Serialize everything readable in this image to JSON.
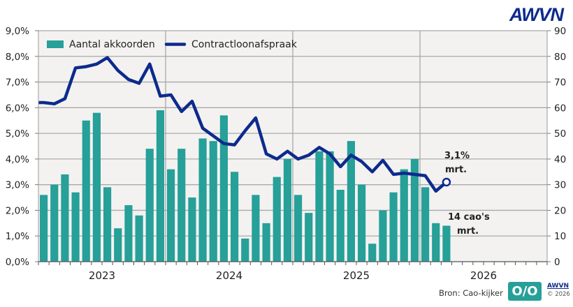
{
  "logo": "AWVN",
  "source": "Bron: Cao-kijker",
  "footer_logo": {
    "mark": "O/O",
    "brand": "AWVN",
    "copyright": "© 2026"
  },
  "colors": {
    "bar": "#26a098",
    "line": "#0d2b8c",
    "plot_bg": "#f3f2f1",
    "grid": "#a9a9a9"
  },
  "chart_data": {
    "type": "bar+line",
    "legend": [
      "Aantal akkoorden",
      "Contractloonafspraak"
    ],
    "legend_position": "top-left",
    "years": [
      "2023",
      "2024",
      "2025",
      "2026"
    ],
    "months_shown": "jan 2023 – mrt 2026",
    "left_axis": {
      "ticks": [
        "0,0%",
        "1,0%",
        "2,0%",
        "3,0%",
        "4,0%",
        "5,0%",
        "6,0%",
        "7,0%",
        "8,0%",
        "9,0%"
      ],
      "range": [
        0,
        9
      ]
    },
    "right_axis": {
      "ticks": [
        "0",
        "10",
        "20",
        "30",
        "40",
        "50",
        "60",
        "70",
        "80",
        "90"
      ],
      "range": [
        0,
        90
      ]
    },
    "grid": true,
    "bars_name": "Aantal akkoorden",
    "bars": [
      26,
      30,
      34,
      27,
      55,
      58,
      29,
      13,
      22,
      18,
      44,
      59,
      36,
      44,
      25,
      48,
      47,
      57,
      35,
      9,
      26,
      15,
      33,
      40,
      26,
      19,
      43,
      43,
      28,
      47,
      30,
      7,
      20,
      27,
      36,
      40,
      29,
      15,
      14
    ],
    "line_name": "Contractloonafspraak",
    "line": [
      6.2,
      6.15,
      6.35,
      7.55,
      7.6,
      7.7,
      7.95,
      7.45,
      7.1,
      6.95,
      7.7,
      6.45,
      6.5,
      5.85,
      6.25,
      5.2,
      4.9,
      4.6,
      4.55,
      5.1,
      5.6,
      4.2,
      4.0,
      4.3,
      4.0,
      4.15,
      4.45,
      4.2,
      3.7,
      4.15,
      3.9,
      3.5,
      3.95,
      3.4,
      3.45,
      3.4,
      3.35,
      2.75,
      3.1
    ],
    "annotations": {
      "line_value": "3,1%",
      "line_month": "mrt.",
      "bar_value": "14 cao's",
      "bar_month": "mrt."
    }
  }
}
